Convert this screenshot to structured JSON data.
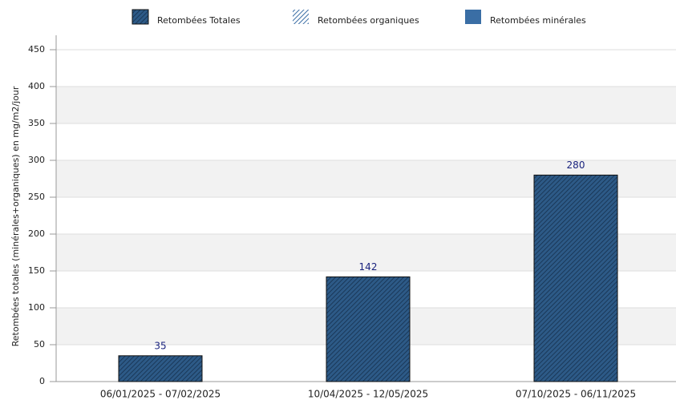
{
  "chart_data": {
    "type": "bar",
    "y_label": "Retombées totales (minérales+organiques) en mg/m2/jour",
    "categories": [
      "06/01/2025 - 07/02/2025",
      "10/04/2025 - 12/05/2025",
      "07/10/2025 - 06/11/2025"
    ],
    "series": [
      {
        "name": "Retombées Totales",
        "color": "#2d5a87",
        "values": [
          35,
          142,
          280
        ]
      }
    ],
    "legend": [
      {
        "name": "Retombées Totales",
        "color": "#2d5a87",
        "pattern": "dense"
      },
      {
        "name": "Retombées organiques",
        "color": "#3a6ea5",
        "pattern": "light"
      },
      {
        "name": "Retombées minérales",
        "color": "#3a6ea5",
        "pattern": "solid"
      }
    ],
    "ylim": [
      0,
      450
    ],
    "yticks": [
      0,
      50,
      100,
      150,
      200,
      250,
      300,
      350,
      400,
      450
    ],
    "grid": true
  }
}
